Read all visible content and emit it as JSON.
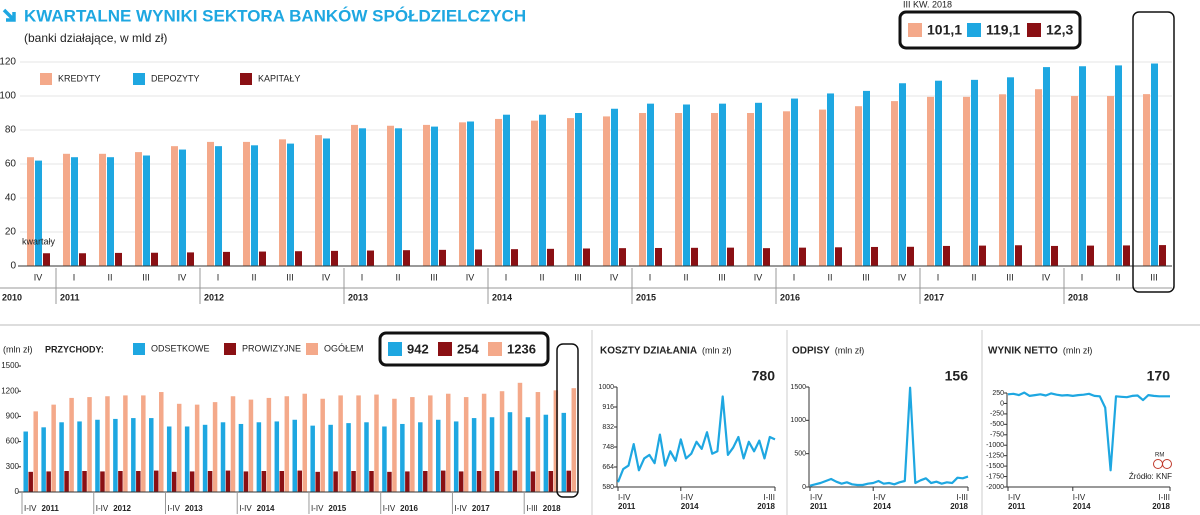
{
  "header": {
    "title": "KWARTALNE WYNIKI SEKTORA BANKÓW SPÓŁDZIELCZYCH",
    "subtitle": "(banki działające, w mld zł)"
  },
  "chart_data": [
    {
      "type": "bar",
      "categories": [
        "IV",
        "I",
        "II",
        "III",
        "IV",
        "I",
        "II",
        "III",
        "IV",
        "I",
        "II",
        "III",
        "IV",
        "I",
        "II",
        "III",
        "IV",
        "I",
        "II",
        "III",
        "IV",
        "I",
        "II",
        "III",
        "IV",
        "I",
        "II",
        "III",
        "IV",
        "I",
        "II",
        "III"
      ],
      "year_labels": [
        "2010",
        "2011",
        null,
        null,
        null,
        "2012",
        null,
        null,
        null,
        "2013",
        null,
        null,
        null,
        "2014",
        null,
        null,
        null,
        "2015",
        null,
        null,
        null,
        "2016",
        null,
        null,
        null,
        "2017",
        null,
        null,
        null,
        "2018",
        null,
        null
      ],
      "axis_note": "kwartały",
      "series": [
        {
          "name": "KREDYTY",
          "color": "#f4a98a",
          "values": [
            64,
            66,
            66,
            67,
            70.5,
            73,
            73,
            74.5,
            77,
            83,
            82.5,
            83,
            84.5,
            86.5,
            85.5,
            87,
            88,
            90,
            90,
            90,
            90,
            91,
            92,
            94,
            97,
            99.5,
            99.5,
            101,
            104,
            100,
            100,
            101.1
          ]
        },
        {
          "name": "DEPOZYTY",
          "color": "#1ea7e1",
          "values": [
            62,
            64,
            64,
            65,
            68.5,
            70.5,
            71,
            72,
            75,
            81,
            81,
            82,
            85,
            89,
            89,
            90,
            92.5,
            95.5,
            95,
            95.5,
            96,
            98.5,
            101.5,
            103,
            107.5,
            109,
            109.5,
            111,
            117,
            117.5,
            118,
            119.1
          ]
        },
        {
          "name": "KAPITAŁY",
          "color": "#8a1014",
          "values": [
            7.5,
            7.5,
            7.7,
            7.8,
            8,
            8.3,
            8.5,
            8.7,
            8.9,
            9.1,
            9.3,
            9.5,
            9.7,
            9.9,
            10.1,
            10.3,
            10.5,
            10.6,
            10.7,
            10.8,
            10.5,
            10.8,
            11,
            11.2,
            11.3,
            11.8,
            12,
            12.2,
            11.8,
            12,
            12.1,
            12.3
          ]
        }
      ],
      "ylim": [
        0,
        120
      ],
      "yticks": [
        0,
        20,
        40,
        60,
        80,
        100,
        120
      ],
      "grid": true,
      "highlight": {
        "label": "III KW. 2018",
        "labels": [
          "101,1",
          "119,1",
          "12,3"
        ]
      }
    },
    {
      "type": "bar",
      "title": "PRZYCHODY:",
      "unit": "(mln zł)",
      "categories": [
        [
          "I-IV",
          "2011"
        ],
        null,
        null,
        null,
        [
          "I-IV",
          "2012"
        ],
        null,
        null,
        null,
        [
          "I-IV",
          "2013"
        ],
        null,
        null,
        null,
        [
          "I-IV",
          "2014"
        ],
        null,
        null,
        null,
        [
          "I-IV",
          "2015"
        ],
        null,
        null,
        null,
        [
          "I-IV",
          "2016"
        ],
        null,
        null,
        null,
        [
          "I-IV",
          "2017"
        ],
        null,
        null,
        null,
        [
          "I-III",
          "2018"
        ],
        null,
        null
      ],
      "series": [
        {
          "name": "ODSETKOWE",
          "color": "#1ea7e1",
          "values": [
            720,
            770,
            830,
            840,
            860,
            870,
            880,
            880,
            780,
            780,
            800,
            830,
            810,
            830,
            840,
            860,
            790,
            800,
            820,
            830,
            780,
            810,
            830,
            860,
            840,
            880,
            890,
            950,
            890,
            920,
            942
          ]
        },
        {
          "name": "PROWIZYJNE",
          "color": "#8a1014",
          "values": [
            240,
            245,
            250,
            250,
            245,
            250,
            250,
            255,
            240,
            245,
            250,
            255,
            245,
            250,
            250,
            255,
            240,
            245,
            250,
            250,
            240,
            245,
            250,
            255,
            245,
            250,
            250,
            255,
            245,
            250,
            254
          ]
        },
        {
          "name": "OGÓŁEM",
          "color": "#f4a98a",
          "values": [
            960,
            1040,
            1120,
            1130,
            1140,
            1150,
            1150,
            1190,
            1050,
            1040,
            1070,
            1140,
            1100,
            1120,
            1140,
            1170,
            1110,
            1150,
            1150,
            1160,
            1110,
            1130,
            1150,
            1170,
            1130,
            1170,
            1200,
            1300,
            1190,
            1210,
            1236
          ]
        }
      ],
      "ylim": [
        0,
        1500
      ],
      "yticks": [
        0,
        300,
        600,
        900,
        1200,
        1500
      ],
      "grid": false,
      "highlight": {
        "labels": [
          "942",
          "254",
          "1236"
        ]
      }
    },
    {
      "type": "line",
      "title": "KOSZTY DZIAŁANIA",
      "unit": "(mln zł)",
      "categories": [
        [
          "I-IV",
          "2011"
        ],
        null,
        null,
        null,
        null,
        null,
        null,
        null,
        null,
        null,
        null,
        null,
        [
          "I-IV",
          "2014"
        ],
        null,
        null,
        null,
        null,
        null,
        null,
        null,
        null,
        null,
        null,
        null,
        null,
        null,
        null,
        null,
        null,
        null,
        [
          "I-III",
          "2018"
        ]
      ],
      "series": [
        {
          "color": "#1ea7e1",
          "values": [
            600,
            655,
            670,
            760,
            650,
            700,
            715,
            680,
            800,
            670,
            730,
            690,
            780,
            700,
            720,
            770,
            740,
            810,
            720,
            730,
            960,
            715,
            745,
            790,
            700,
            770,
            730,
            775,
            700,
            790,
            780
          ]
        }
      ],
      "ylim": [
        580,
        1000
      ],
      "yticks": [
        580,
        664,
        748,
        832,
        916,
        1000
      ],
      "highlight": {
        "labels": [
          "780"
        ]
      }
    },
    {
      "type": "line",
      "title": "ODPISY",
      "unit": "(mln zł)",
      "categories": [
        [
          "I-IV",
          "2011"
        ],
        null,
        null,
        null,
        null,
        null,
        null,
        null,
        null,
        null,
        null,
        null,
        [
          "I-IV",
          "2014"
        ],
        null,
        null,
        null,
        null,
        null,
        null,
        null,
        null,
        null,
        null,
        null,
        null,
        null,
        null,
        null,
        null,
        null,
        [
          "I-III",
          "2018"
        ]
      ],
      "series": [
        {
          "color": "#1ea7e1",
          "values": [
            20,
            40,
            60,
            90,
            120,
            80,
            50,
            70,
            40,
            30,
            30,
            50,
            60,
            90,
            50,
            60,
            40,
            70,
            90,
            1490,
            60,
            100,
            130,
            60,
            80,
            50,
            70,
            60,
            140,
            130,
            156
          ]
        }
      ],
      "ylim": [
        0,
        1500
      ],
      "yticks": [
        0,
        500,
        1000,
        1500
      ],
      "highlight": {
        "labels": [
          "156"
        ]
      }
    },
    {
      "type": "line",
      "title": "WYNIK NETTO",
      "unit": "(mln zł)",
      "categories": [
        [
          "I-IV",
          "2011"
        ],
        null,
        null,
        null,
        null,
        null,
        null,
        null,
        null,
        null,
        null,
        null,
        [
          "I-IV",
          "2014"
        ],
        null,
        null,
        null,
        null,
        null,
        null,
        null,
        null,
        null,
        null,
        null,
        null,
        null,
        null,
        null,
        null,
        null,
        [
          "I-III",
          "2018"
        ]
      ],
      "series": [
        {
          "color": "#1ea7e1",
          "values": [
            220,
            230,
            200,
            260,
            180,
            200,
            220,
            190,
            240,
            210,
            190,
            200,
            180,
            200,
            210,
            230,
            180,
            170,
            -100,
            -1600,
            170,
            160,
            150,
            180,
            190,
            80,
            200,
            180,
            170,
            170,
            170
          ]
        }
      ],
      "ylim": [
        -2000,
        250
      ],
      "yticks": [
        250,
        0,
        -250,
        -500,
        -750,
        -1000,
        -1250,
        -1500,
        -1750,
        -2000
      ],
      "highlight": {
        "labels": [
          "170"
        ]
      },
      "credit": "RM",
      "source": "Źródło: KNF"
    }
  ]
}
